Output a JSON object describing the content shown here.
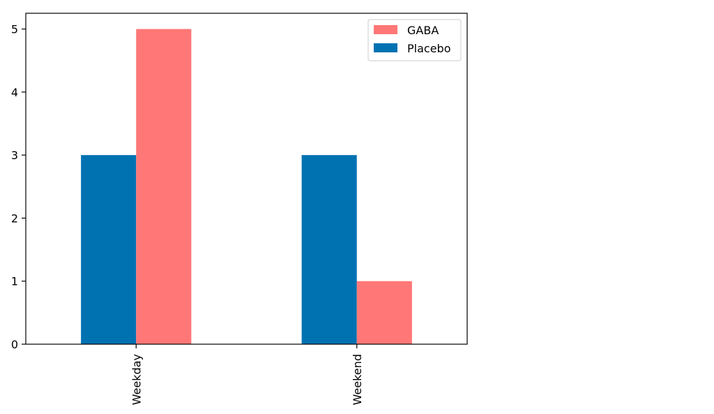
{
  "chart_data": {
    "type": "bar",
    "categories": [
      "Weekday",
      "Weekend"
    ],
    "series": [
      {
        "name": "Placebo",
        "values": [
          3,
          3
        ],
        "color": "#0072b2"
      },
      {
        "name": "GABA",
        "values": [
          5,
          1
        ],
        "color": "#ff7777"
      }
    ],
    "title": "",
    "xlabel": "",
    "ylabel": "",
    "ylim": [
      0,
      5.25
    ],
    "yticks": [
      0,
      1,
      2,
      3,
      4,
      5
    ],
    "grid": false,
    "legend": {
      "placement": "top-right",
      "entries": [
        {
          "label": "GABA",
          "color": "#ff7777"
        },
        {
          "label": "Placebo",
          "color": "#0072b2"
        }
      ]
    }
  }
}
